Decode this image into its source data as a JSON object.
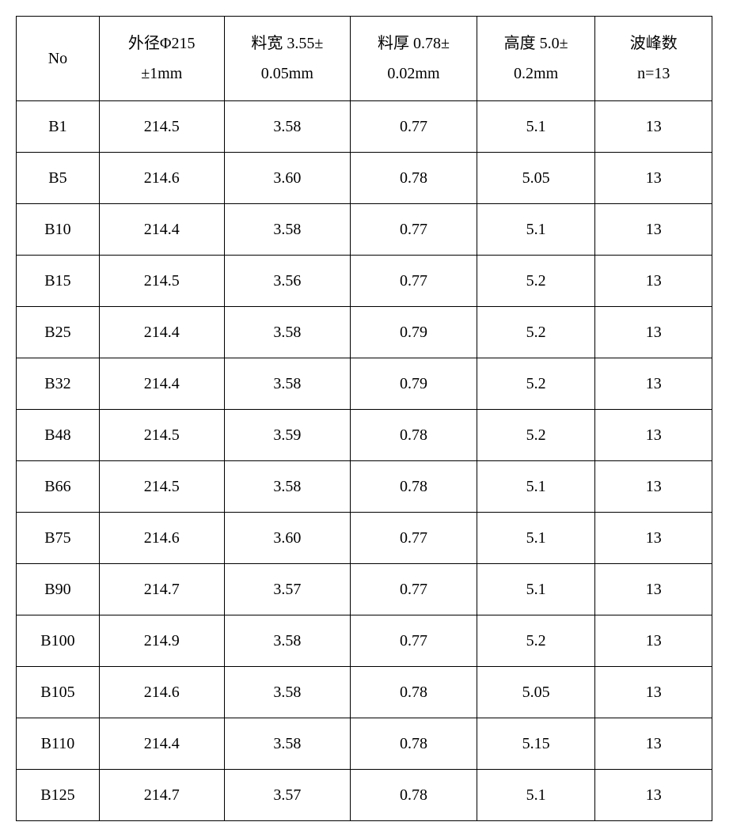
{
  "table": {
    "columns": [
      {
        "line1": "No",
        "line2": ""
      },
      {
        "line1": "外径Φ215",
        "line2": "±1mm"
      },
      {
        "line1": "料宽 3.55±",
        "line2": "0.05mm"
      },
      {
        "line1": "料厚 0.78±",
        "line2": "0.02mm"
      },
      {
        "line1": "高度 5.0±",
        "line2": "0.2mm"
      },
      {
        "line1": "波峰数",
        "line2": "n=13"
      }
    ],
    "rows": [
      [
        "B1",
        "214.5",
        "3.58",
        "0.77",
        "5.1",
        "13"
      ],
      [
        "B5",
        "214.6",
        "3.60",
        "0.78",
        "5.05",
        "13"
      ],
      [
        "B10",
        "214.4",
        "3.58",
        "0.77",
        "5.1",
        "13"
      ],
      [
        "B15",
        "214.5",
        "3.56",
        "0.77",
        "5.2",
        "13"
      ],
      [
        "B25",
        "214.4",
        "3.58",
        "0.79",
        "5.2",
        "13"
      ],
      [
        "B32",
        "214.4",
        "3.58",
        "0.79",
        "5.2",
        "13"
      ],
      [
        "B48",
        "214.5",
        "3.59",
        "0.78",
        "5.2",
        "13"
      ],
      [
        "B66",
        "214.5",
        "3.58",
        "0.78",
        "5.1",
        "13"
      ],
      [
        "B75",
        "214.6",
        "3.60",
        "0.77",
        "5.1",
        "13"
      ],
      [
        "B90",
        "214.7",
        "3.57",
        "0.77",
        "5.1",
        "13"
      ],
      [
        "B100",
        "214.9",
        "3.58",
        "0.77",
        "5.2",
        "13"
      ],
      [
        "B105",
        "214.6",
        "3.58",
        "0.78",
        "5.05",
        "13"
      ],
      [
        "B110",
        "214.4",
        "3.58",
        "0.78",
        "5.15",
        "13"
      ],
      [
        "B125",
        "214.7",
        "3.57",
        "0.78",
        "5.1",
        "13"
      ]
    ]
  }
}
